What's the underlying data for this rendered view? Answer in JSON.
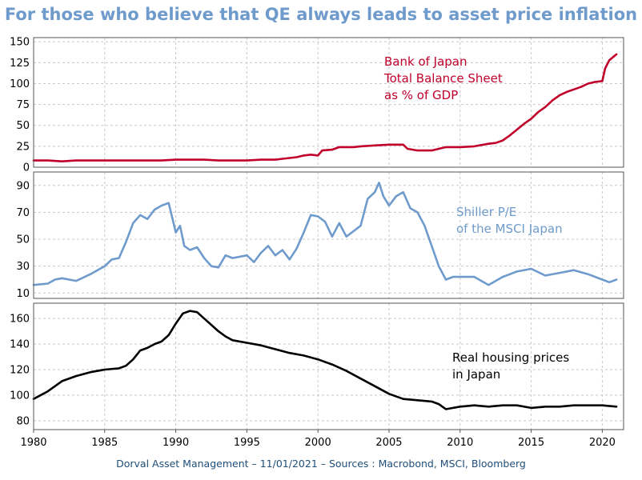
{
  "title": "For those who believe that QE always leads to asset price inflation",
  "footer": "Dorval Asset Management – 11/01/2021 –  Sources : Macrobond, MSCI, Bloomberg",
  "colors": {
    "title": "#6f9bcc",
    "boj": "#c0002a",
    "shiller": "#6f9bcc",
    "housing": "#000000",
    "footer": "#1f4e79"
  },
  "chart_data": [
    {
      "type": "line",
      "name": "boj",
      "annotation": [
        "Bank of Japan",
        "Total Balance Sheet",
        "as % of GDP"
      ],
      "xlim": [
        1980,
        2021.5
      ],
      "ylim": [
        0,
        155
      ],
      "yticks": [
        0,
        25,
        50,
        75,
        100,
        125,
        150
      ],
      "grid": true,
      "series": [
        {
          "x": [
            1980,
            1981,
            1982,
            1983,
            1984,
            1985,
            1986,
            1987,
            1988,
            1989,
            1990,
            1991,
            1992,
            1993,
            1994,
            1995,
            1996,
            1997,
            1997.5,
            1998,
            1998.5,
            1999,
            1999.5,
            2000,
            2000.3,
            2001,
            2001.5,
            2002,
            2002.5,
            2003,
            2004,
            2005,
            2006,
            2006.3,
            2007,
            2008,
            2008.5,
            2009,
            2010,
            2011,
            2012,
            2012.5,
            2013,
            2013.5,
            2014,
            2014.5,
            2015,
            2015.5,
            2016,
            2016.5,
            2017,
            2017.5,
            2018,
            2018.5,
            2019,
            2019.5,
            2020,
            2020.2,
            2020.5,
            2021
          ],
          "y": [
            8,
            8,
            7,
            8,
            8,
            8,
            8,
            8,
            8,
            8,
            9,
            9,
            9,
            8,
            8,
            8,
            9,
            9,
            10,
            11,
            12,
            14,
            15,
            14,
            20,
            21,
            24,
            24,
            24,
            25,
            26,
            27,
            27,
            22,
            20,
            20,
            22,
            24,
            24,
            25,
            28,
            29,
            32,
            38,
            45,
            52,
            58,
            66,
            72,
            80,
            86,
            90,
            93,
            96,
            100,
            102,
            103,
            118,
            128,
            135
          ]
        }
      ]
    },
    {
      "type": "line",
      "name": "shiller",
      "annotation": [
        "Shiller P/E",
        "of the MSCI Japan"
      ],
      "xlim": [
        1980,
        2021.5
      ],
      "ylim": [
        6,
        100
      ],
      "yticks": [
        10,
        30,
        50,
        70,
        90
      ],
      "grid": true,
      "series": [
        {
          "x": [
            1980,
            1981,
            1981.5,
            1982,
            1983,
            1984,
            1985,
            1985.5,
            1986,
            1986.5,
            1987,
            1987.5,
            1988,
            1988.5,
            1989,
            1989.5,
            1990,
            1990.3,
            1990.6,
            1991,
            1991.5,
            1992,
            1992.5,
            1993,
            1993.5,
            1994,
            1995,
            1995.5,
            1996,
            1996.5,
            1997,
            1997.5,
            1998,
            1998.5,
            1999,
            1999.5,
            2000,
            2000.5,
            2001,
            2001.5,
            2002,
            2002.5,
            2003,
            2003.5,
            2004,
            2004.3,
            2004.6,
            2005,
            2005.5,
            2006,
            2006.5,
            2007,
            2007.5,
            2008,
            2008.5,
            2009,
            2009.5,
            2010,
            2011,
            2012,
            2013,
            2014,
            2015,
            2016,
            2017,
            2018,
            2019,
            2020,
            2020.5,
            2021
          ],
          "y": [
            16,
            17,
            20,
            21,
            19,
            24,
            30,
            35,
            36,
            48,
            62,
            68,
            65,
            72,
            75,
            77,
            55,
            60,
            45,
            42,
            44,
            36,
            30,
            29,
            38,
            36,
            38,
            33,
            40,
            45,
            38,
            42,
            35,
            43,
            55,
            68,
            67,
            63,
            52,
            62,
            52,
            56,
            60,
            80,
            85,
            92,
            82,
            75,
            82,
            85,
            73,
            70,
            60,
            45,
            30,
            20,
            22,
            22,
            22,
            16,
            22,
            26,
            28,
            23,
            25,
            27,
            24,
            20,
            18,
            20
          ]
        }
      ]
    },
    {
      "type": "line",
      "name": "housing",
      "annotation": [
        "Real housing prices",
        "in Japan"
      ],
      "xlim": [
        1980,
        2021.5
      ],
      "ylim": [
        73,
        172
      ],
      "yticks": [
        80,
        100,
        120,
        140,
        160
      ],
      "grid": true,
      "series": [
        {
          "x": [
            1980,
            1981,
            1982,
            1983,
            1984,
            1985,
            1986,
            1986.5,
            1987,
            1987.5,
            1988,
            1988.5,
            1989,
            1989.5,
            1990,
            1990.5,
            1991,
            1991.5,
            1992,
            1992.5,
            1993,
            1993.5,
            1994,
            1995,
            1996,
            1997,
            1998,
            1999,
            2000,
            2001,
            2002,
            2003,
            2004,
            2005,
            2006,
            2007,
            2008,
            2008.5,
            2009,
            2009.5,
            2010,
            2011,
            2012,
            2013,
            2014,
            2015,
            2016,
            2017,
            2018,
            2019,
            2020,
            2021
          ],
          "y": [
            97,
            103,
            111,
            115,
            118,
            120,
            121,
            123,
            128,
            135,
            137,
            140,
            142,
            147,
            156,
            164,
            166,
            165,
            160,
            155,
            150,
            146,
            143,
            141,
            139,
            136,
            133,
            131,
            128,
            124,
            119,
            113,
            107,
            101,
            97,
            96,
            95,
            93,
            89,
            90,
            91,
            92,
            91,
            92,
            92,
            90,
            91,
            91,
            92,
            92,
            92,
            91
          ]
        }
      ]
    }
  ],
  "xaxis": {
    "ticks": [
      1980,
      1985,
      1990,
      1995,
      2000,
      2005,
      2010,
      2015,
      2020
    ]
  }
}
